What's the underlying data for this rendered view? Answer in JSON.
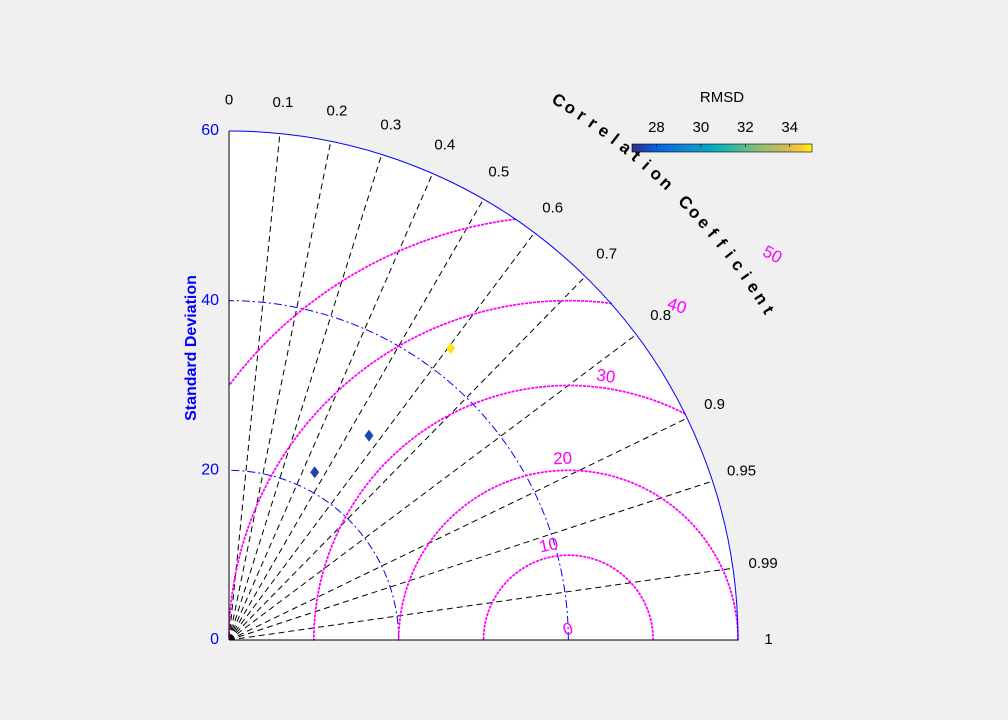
{
  "chart_data": {
    "type": "scatter",
    "subtype": "taylor-diagram",
    "ylabel": "Standard Deviation",
    "arc_label": "Correlation Coefficient",
    "std_ticks": [
      "0",
      "20",
      "40",
      "60"
    ],
    "std_tick_values": [
      0,
      20,
      40,
      60
    ],
    "std_max": 60,
    "correlation_ticks": [
      "0",
      "0.1",
      "0.2",
      "0.3",
      "0.4",
      "0.5",
      "0.6",
      "0.7",
      "0.8",
      "0.9",
      "0.95",
      "0.99",
      "1"
    ],
    "correlation_tick_values": [
      0,
      0.1,
      0.2,
      0.3,
      0.4,
      0.5,
      0.6,
      0.7,
      0.8,
      0.9,
      0.95,
      0.99,
      1
    ],
    "reference_std": 40,
    "rmsd_contours": [
      "0",
      "10",
      "20",
      "30",
      "40",
      "50"
    ],
    "rmsd_contour_values": [
      0,
      10,
      20,
      30,
      40,
      50
    ],
    "colorbar": {
      "title": "RMSD",
      "ticks": [
        "28",
        "30",
        "32",
        "34"
      ],
      "tick_values": [
        28,
        30,
        32,
        34
      ],
      "range": [
        26.9,
        35.0
      ]
    },
    "points": [
      {
        "std": 22.2,
        "correlation": 0.455,
        "rmsd": 27.4
      },
      {
        "std": 29.2,
        "correlation": 0.565,
        "rmsd": 27.5
      },
      {
        "std": 43.2,
        "correlation": 0.605,
        "rmsd": 34.8
      }
    ],
    "colors": {
      "std_axis": "#0000ff",
      "rmsd": "#ff00ff",
      "correlation": "#000000",
      "frame": "#0000ff"
    },
    "grid": true
  }
}
